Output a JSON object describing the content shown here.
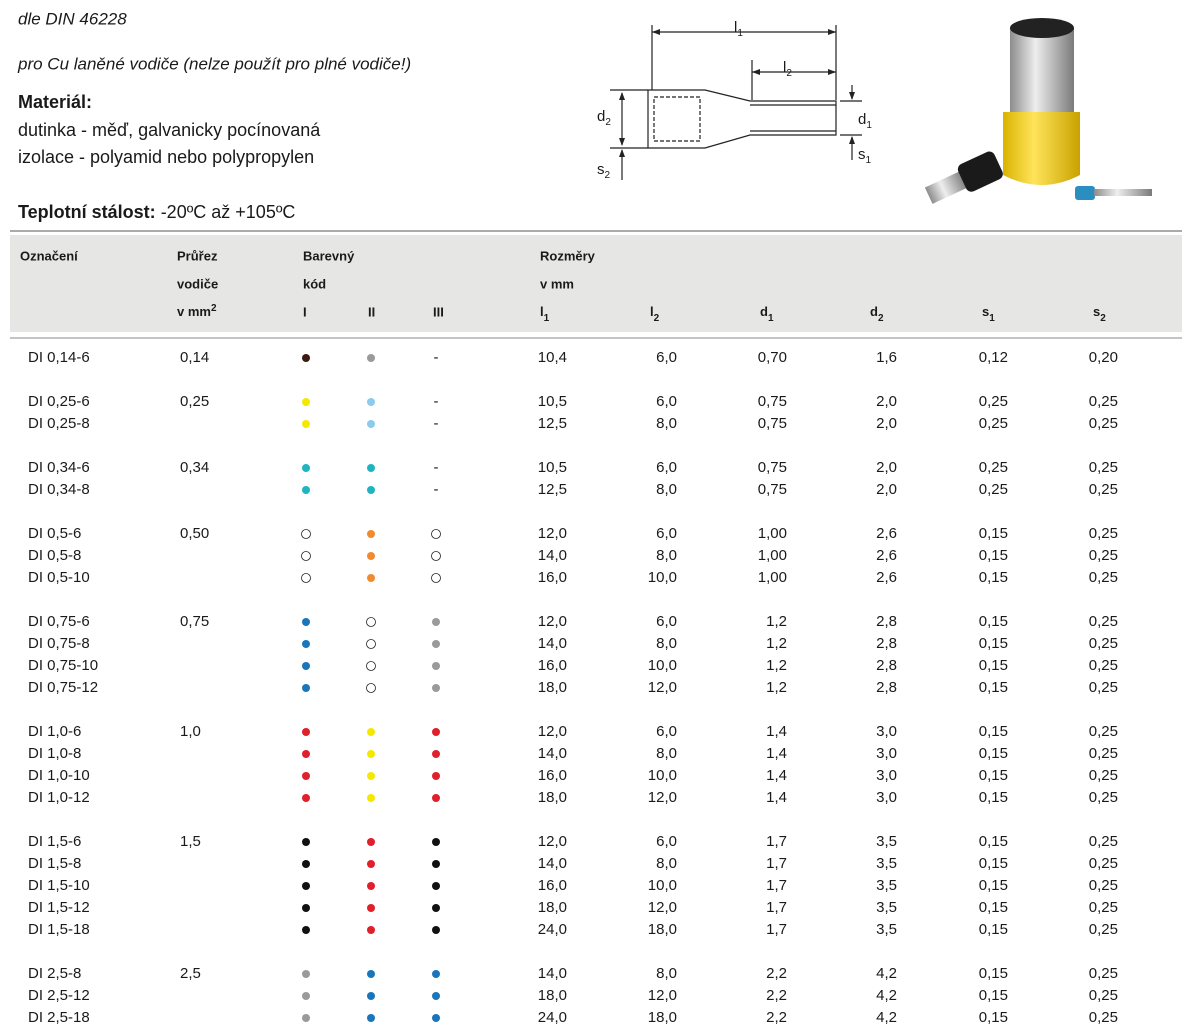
{
  "header": {
    "standard": "dle DIN 46228",
    "usage": "pro Cu laněné vodiče (nelze použít pro plné vodiče!)",
    "material_title": "Materiál:",
    "material_lines": [
      "dutinka - měď, galvanicky pocínovaná",
      "izolace - polyamid nebo polypropylen"
    ],
    "temperature_label": "Teplotní stálost:",
    "temperature_value": "-20ºC až +105ºC"
  },
  "diagram": {
    "labels": [
      {
        "symbol": "l",
        "index": "1"
      },
      {
        "symbol": "l",
        "index": "2"
      },
      {
        "symbol": "d",
        "index": "2"
      },
      {
        "symbol": "d",
        "index": "1"
      },
      {
        "symbol": "s",
        "index": "2"
      },
      {
        "symbol": "s",
        "index": "1"
      }
    ]
  },
  "table": {
    "columns": {
      "designation": "Označení",
      "section": [
        "Průřez",
        "vodiče",
        "v mm"
      ],
      "section_sup": "2",
      "color_code": [
        "Barevný",
        "kód"
      ],
      "color_cols": [
        "I",
        "II",
        "III"
      ],
      "dimensions": [
        "Rozměry",
        "v mm"
      ],
      "dim_cols": [
        {
          "symbol": "l",
          "index": "1"
        },
        {
          "symbol": "l",
          "index": "2"
        },
        {
          "symbol": "d",
          "index": "1"
        },
        {
          "symbol": "d",
          "index": "2"
        },
        {
          "symbol": "s",
          "index": "1"
        },
        {
          "symbol": "s",
          "index": "2"
        }
      ]
    },
    "groups": [
      {
        "section": "0,14",
        "colors": [
          "#3b1a10",
          "#9a9a9a",
          "-"
        ],
        "rows": [
          [
            "DI 0,14-6",
            "10,4",
            "6,0",
            "0,70",
            "1,6",
            "0,12",
            "0,20"
          ]
        ]
      },
      {
        "section": "0,25",
        "colors": [
          "#f5e800",
          "#8ccbee",
          "-"
        ],
        "rows": [
          [
            "DI 0,25-6",
            "10,5",
            "6,0",
            "0,75",
            "2,0",
            "0,25",
            "0,25"
          ],
          [
            "DI 0,25-8",
            "12,5",
            "8,0",
            "0,75",
            "2,0",
            "0,25",
            "0,25"
          ]
        ]
      },
      {
        "section": "0,34",
        "colors": [
          "#1fb5c0",
          "#1fb5c0",
          "-"
        ],
        "rows": [
          [
            "DI 0,34-6",
            "10,5",
            "6,0",
            "0,75",
            "2,0",
            "0,25",
            "0,25"
          ],
          [
            "DI 0,34-8",
            "12,5",
            "8,0",
            "0,75",
            "2,0",
            "0,25",
            "0,25"
          ]
        ]
      },
      {
        "section": "0,50",
        "colors": [
          "white",
          "#f28a30",
          "white"
        ],
        "rows": [
          [
            "DI 0,5-6",
            "12,0",
            "6,0",
            "1,00",
            "2,6",
            "0,15",
            "0,25"
          ],
          [
            "DI 0,5-8",
            "14,0",
            "8,0",
            "1,00",
            "2,6",
            "0,15",
            "0,25"
          ],
          [
            "DI 0,5-10",
            "16,0",
            "10,0",
            "1,00",
            "2,6",
            "0,15",
            "0,25"
          ]
        ]
      },
      {
        "section": "0,75",
        "colors": [
          "#1b75bb",
          "white",
          "#9a9a9a"
        ],
        "rows": [
          [
            "DI 0,75-6",
            "12,0",
            "6,0",
            "1,2",
            "2,8",
            "0,15",
            "0,25"
          ],
          [
            "DI 0,75-8",
            "14,0",
            "8,0",
            "1,2",
            "2,8",
            "0,15",
            "0,25"
          ],
          [
            "DI 0,75-10",
            "16,0",
            "10,0",
            "1,2",
            "2,8",
            "0,15",
            "0,25"
          ],
          [
            "DI 0,75-12",
            "18,0",
            "12,0",
            "1,2",
            "2,8",
            "0,15",
            "0,25"
          ]
        ]
      },
      {
        "section": "1,0",
        "colors": [
          "#e0202a",
          "#f5e800",
          "#e0202a"
        ],
        "rows": [
          [
            "DI 1,0-6",
            "12,0",
            "6,0",
            "1,4",
            "3,0",
            "0,15",
            "0,25"
          ],
          [
            "DI 1,0-8",
            "14,0",
            "8,0",
            "1,4",
            "3,0",
            "0,15",
            "0,25"
          ],
          [
            "DI 1,0-10",
            "16,0",
            "10,0",
            "1,4",
            "3,0",
            "0,15",
            "0,25"
          ],
          [
            "DI 1,0-12",
            "18,0",
            "12,0",
            "1,4",
            "3,0",
            "0,15",
            "0,25"
          ]
        ]
      },
      {
        "section": "1,5",
        "colors": [
          "#111111",
          "#e0202a",
          "#111111"
        ],
        "rows": [
          [
            "DI 1,5-6",
            "12,0",
            "6,0",
            "1,7",
            "3,5",
            "0,15",
            "0,25"
          ],
          [
            "DI 1,5-8",
            "14,0",
            "8,0",
            "1,7",
            "3,5",
            "0,15",
            "0,25"
          ],
          [
            "DI 1,5-10",
            "16,0",
            "10,0",
            "1,7",
            "3,5",
            "0,15",
            "0,25"
          ],
          [
            "DI 1,5-12",
            "18,0",
            "12,0",
            "1,7",
            "3,5",
            "0,15",
            "0,25"
          ],
          [
            "DI 1,5-18",
            "24,0",
            "18,0",
            "1,7",
            "3,5",
            "0,15",
            "0,25"
          ]
        ]
      },
      {
        "section": "2,5",
        "colors": [
          "#9a9a9a",
          "#1b75bb",
          "#1b75bb"
        ],
        "rows": [
          [
            "DI 2,5-8",
            "14,0",
            "8,0",
            "2,2",
            "4,2",
            "0,15",
            "0,25"
          ],
          [
            "DI 2,5-12",
            "18,0",
            "12,0",
            "2,2",
            "4,2",
            "0,15",
            "0,25"
          ],
          [
            "DI 2,5-18",
            "24,0",
            "18,0",
            "2,2",
            "4,2",
            "0,15",
            "0,25"
          ]
        ]
      }
    ]
  }
}
